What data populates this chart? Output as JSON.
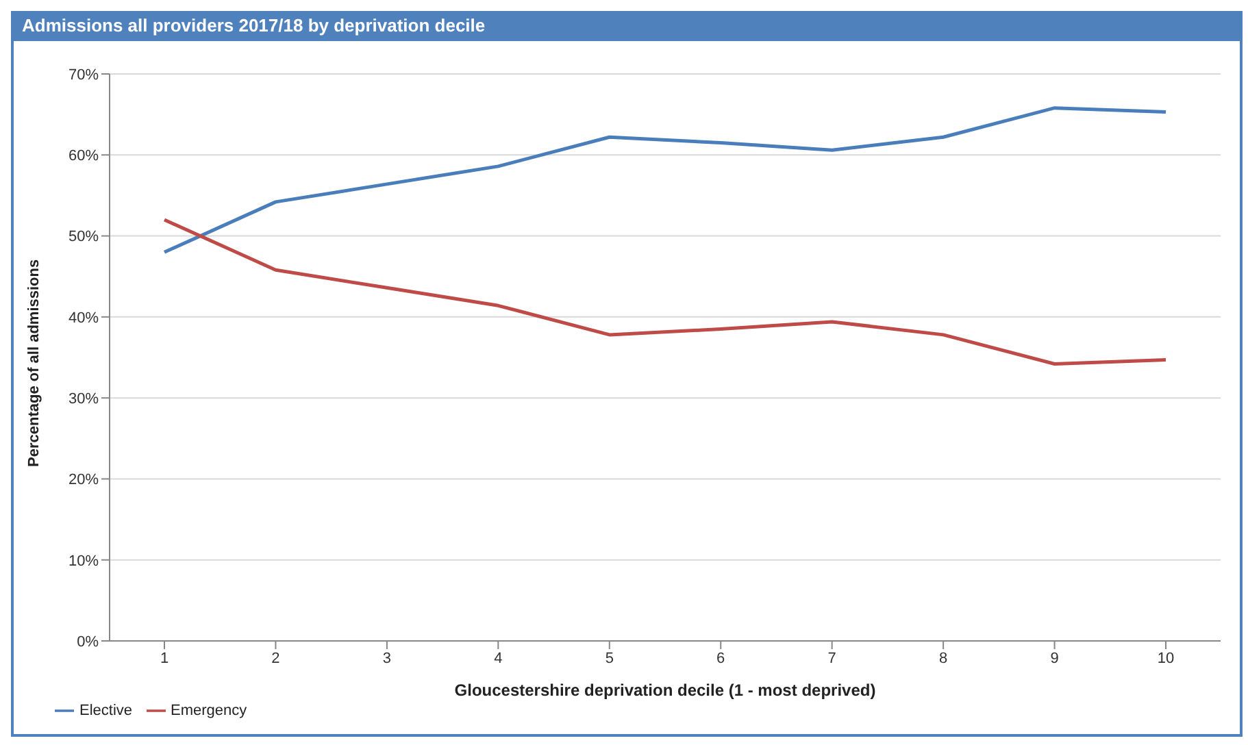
{
  "chart_data": {
    "type": "line",
    "title": "Admissions all providers 2017/18 by deprivation decile",
    "xlabel": "Gloucestershire deprivation decile (1 - most deprived)",
    "ylabel": "Percentage of all admissions",
    "categories": [
      "1",
      "2",
      "3",
      "4",
      "5",
      "6",
      "7",
      "8",
      "9",
      "10"
    ],
    "series": [
      {
        "name": "Elective",
        "color": "#4a7ebb",
        "values": [
          48.0,
          54.2,
          56.4,
          58.6,
          62.2,
          61.5,
          60.6,
          62.2,
          65.8,
          65.3
        ]
      },
      {
        "name": "Emergency",
        "color": "#be4b48",
        "values": [
          52.0,
          45.8,
          43.6,
          41.4,
          37.8,
          38.5,
          39.4,
          37.8,
          34.2,
          34.7
        ]
      }
    ],
    "ylim": [
      0,
      70
    ],
    "yticks": [
      {
        "value": 0,
        "label": "0%"
      },
      {
        "value": 10,
        "label": "10%"
      },
      {
        "value": 20,
        "label": "20%"
      },
      {
        "value": 30,
        "label": "30%"
      },
      {
        "value": 40,
        "label": "40%"
      },
      {
        "value": 50,
        "label": "50%"
      },
      {
        "value": 60,
        "label": "60%"
      },
      {
        "value": 70,
        "label": "70%"
      }
    ],
    "grid": "y",
    "legend": "bottom left",
    "marker": "none",
    "line_style": "solid"
  }
}
